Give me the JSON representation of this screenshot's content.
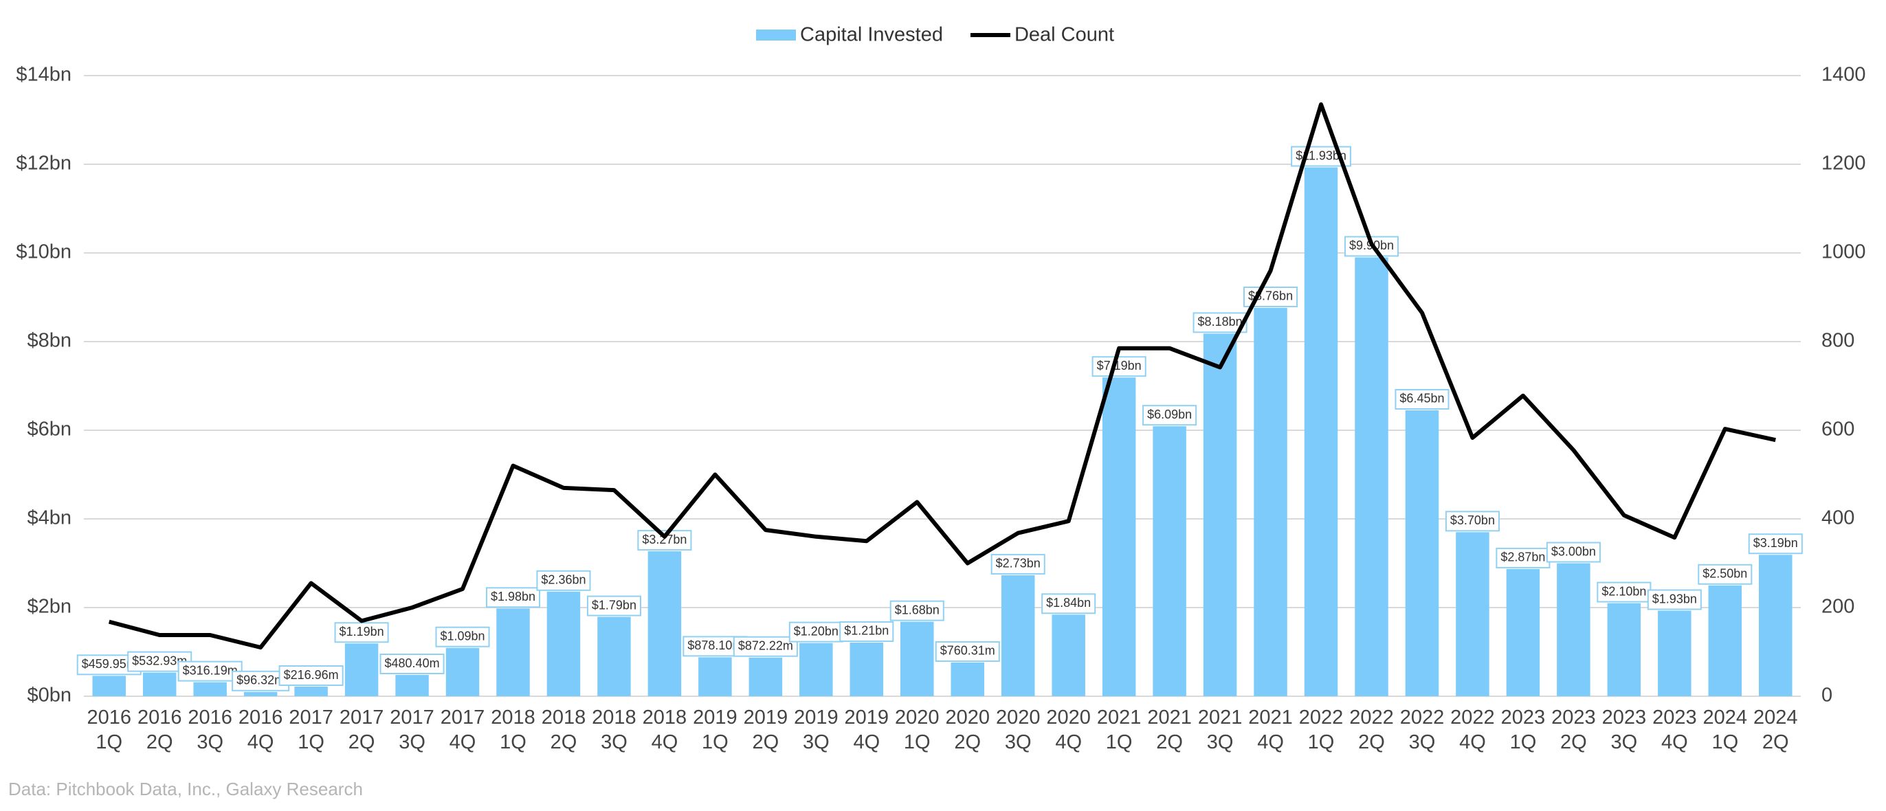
{
  "chart_data": {
    "type": "bar-line",
    "categories": [
      [
        "2016",
        "1Q"
      ],
      [
        "2016",
        "2Q"
      ],
      [
        "2016",
        "3Q"
      ],
      [
        "2016",
        "4Q"
      ],
      [
        "2017",
        "1Q"
      ],
      [
        "2017",
        "2Q"
      ],
      [
        "2017",
        "3Q"
      ],
      [
        "2017",
        "4Q"
      ],
      [
        "2018",
        "1Q"
      ],
      [
        "2018",
        "2Q"
      ],
      [
        "2018",
        "3Q"
      ],
      [
        "2018",
        "4Q"
      ],
      [
        "2019",
        "1Q"
      ],
      [
        "2019",
        "2Q"
      ],
      [
        "2019",
        "3Q"
      ],
      [
        "2019",
        "4Q"
      ],
      [
        "2020",
        "1Q"
      ],
      [
        "2020",
        "2Q"
      ],
      [
        "2020",
        "3Q"
      ],
      [
        "2020",
        "4Q"
      ],
      [
        "2021",
        "1Q"
      ],
      [
        "2021",
        "2Q"
      ],
      [
        "2021",
        "3Q"
      ],
      [
        "2021",
        "4Q"
      ],
      [
        "2022",
        "1Q"
      ],
      [
        "2022",
        "2Q"
      ],
      [
        "2022",
        "3Q"
      ],
      [
        "2022",
        "4Q"
      ],
      [
        "2023",
        "1Q"
      ],
      [
        "2023",
        "2Q"
      ],
      [
        "2023",
        "3Q"
      ],
      [
        "2023",
        "4Q"
      ],
      [
        "2024",
        "1Q"
      ],
      [
        "2024",
        "2Q"
      ]
    ],
    "series": [
      {
        "name": "Capital Invested",
        "type": "bar",
        "color": "#7dcbfb",
        "values": [
          0.45995,
          0.53293,
          0.31619,
          0.09632,
          0.21696,
          1.19,
          0.4804,
          1.09,
          1.98,
          2.36,
          1.79,
          3.27,
          0.8781,
          0.87222,
          1.2,
          1.21,
          1.68,
          0.76031,
          2.73,
          1.84,
          7.19,
          6.09,
          8.18,
          8.76,
          11.93,
          9.9,
          6.45,
          3.7,
          2.87,
          3.0,
          2.1,
          1.93,
          2.5,
          3.19
        ],
        "value_labels": [
          "$459.95m",
          "$532.93m",
          "$316.19m",
          "$96.32m",
          "$216.96m",
          "$1.19bn",
          "$480.40m",
          "$1.09bn",
          "$1.98bn",
          "$2.36bn",
          "$1.79bn",
          "$3.27bn",
          "$878.10m",
          "$872.22m",
          "$1.20bn",
          "$1.21bn",
          "$1.68bn",
          "$760.31m",
          "$2.73bn",
          "$1.84bn",
          "$7.19bn",
          "$6.09bn",
          "$8.18bn",
          "$8.76bn",
          "$11.93bn",
          "$9.90bn",
          "$6.45bn",
          "$3.70bn",
          "$2.87bn",
          "$3.00bn",
          "$2.10bn",
          "$1.93bn",
          "$2.50bn",
          "$3.19bn"
        ]
      },
      {
        "name": "Deal Count",
        "type": "line",
        "color": "#000000",
        "axis": "y2",
        "values": [
          168,
          138,
          138,
          110,
          255,
          170,
          200,
          242,
          520,
          470,
          465,
          360,
          500,
          375,
          360,
          350,
          438,
          300,
          368,
          395,
          785,
          785,
          742,
          960,
          1335,
          1020,
          865,
          583,
          678,
          555,
          408,
          358,
          603,
          578
        ]
      }
    ],
    "ylim": [
      0,
      14
    ],
    "yticks": [
      {
        "value": 0,
        "label": "$0bn"
      },
      {
        "value": 2,
        "label": "$2bn"
      },
      {
        "value": 4,
        "label": "$4bn"
      },
      {
        "value": 6,
        "label": "$6bn"
      },
      {
        "value": 8,
        "label": "$8bn"
      },
      {
        "value": 10,
        "label": "$10bn"
      },
      {
        "value": 12,
        "label": "$12bn"
      },
      {
        "value": 14,
        "label": "$14bn"
      }
    ],
    "y2lim": [
      0,
      1400
    ],
    "y2ticks": [
      0,
      200,
      400,
      600,
      800,
      1000,
      1200,
      1400
    ],
    "grid": true,
    "legend": "top",
    "source": "Data: Pitchbook Data, Inc., Galaxy Research"
  }
}
